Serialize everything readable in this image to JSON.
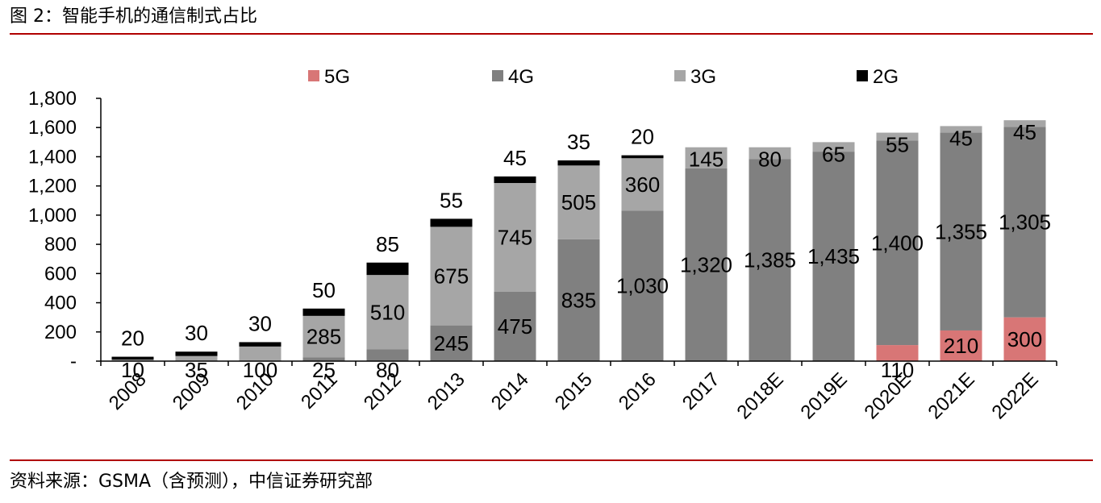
{
  "caption": {
    "title": "图 2：智能手机的通信制式占比",
    "source": "资料来源：GSMA（含预测），中信证券研究部"
  },
  "chart_data": {
    "type": "bar",
    "stacked": true,
    "title": "",
    "xlabel": "",
    "ylabel": "",
    "ylim": [
      0,
      1800
    ],
    "yticks": [
      0,
      200,
      400,
      600,
      800,
      1000,
      1200,
      1400,
      1600,
      1800
    ],
    "ytick_labels": [
      "-",
      "200",
      "400",
      "600",
      "800",
      "1,000",
      "1,200",
      "1,400",
      "1,600",
      "1,800"
    ],
    "grid": false,
    "legend_position": "top",
    "categories": [
      "2008",
      "2009",
      "2010",
      "2011",
      "2012",
      "2013",
      "2014",
      "2015",
      "2016",
      "2017",
      "2018E",
      "2019E",
      "2020E",
      "2021E",
      "2022E"
    ],
    "series": [
      {
        "name": "5G",
        "color": "#d87676",
        "values": [
          0,
          0,
          0,
          0,
          0,
          0,
          0,
          0,
          0,
          0,
          0,
          0,
          110,
          210,
          300
        ],
        "labels": [
          "",
          "",
          "",
          "",
          "",
          "",
          "",
          "",
          "",
          "",
          "",
          "",
          "110",
          "210",
          "300"
        ]
      },
      {
        "name": "4G",
        "color": "#808080",
        "values": [
          0,
          0,
          0,
          25,
          80,
          245,
          475,
          835,
          1030,
          1320,
          1385,
          1435,
          1400,
          1355,
          1305
        ],
        "labels": [
          "",
          "",
          "",
          "25",
          "80",
          "245",
          "475",
          "835",
          "1,030",
          "1,320",
          "1,385",
          "1,435",
          "1,400",
          "1,355",
          "1,305"
        ]
      },
      {
        "name": "3G",
        "color": "#a6a6a6",
        "values": [
          10,
          35,
          100,
          285,
          510,
          675,
          745,
          505,
          360,
          145,
          80,
          65,
          55,
          45,
          45
        ],
        "labels": [
          "10",
          "35",
          "100",
          "285",
          "510",
          "675",
          "745",
          "505",
          "360",
          "145",
          "80",
          "65",
          "55",
          "45",
          "45"
        ]
      },
      {
        "name": "2G",
        "color": "#000000",
        "values": [
          20,
          30,
          30,
          50,
          85,
          55,
          45,
          35,
          20,
          0,
          0,
          0,
          0,
          0,
          0
        ],
        "labels": [
          "20",
          "30",
          "30",
          "50",
          "85",
          "55",
          "45",
          "35",
          "20",
          "",
          "",
          "",
          "",
          "",
          ""
        ]
      }
    ]
  }
}
